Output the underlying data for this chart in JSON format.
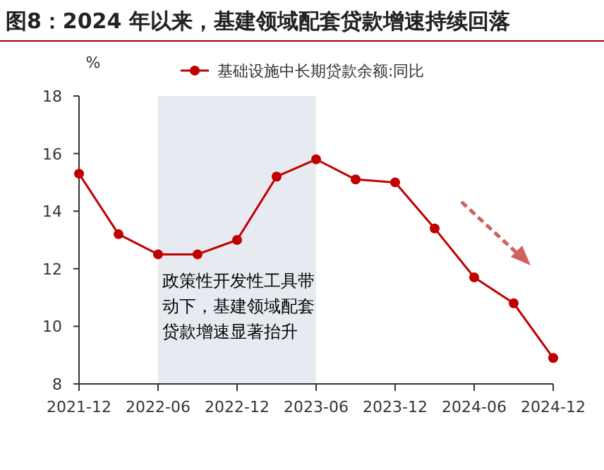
{
  "chart_data": {
    "type": "line",
    "title": "图8：2024 年以来，基建领域配套贷款增速持续回落",
    "ylabel": "%",
    "x": [
      "2021-12",
      "2022-03",
      "2022-06",
      "2022-09",
      "2022-12",
      "2023-03",
      "2023-06",
      "2023-09",
      "2023-12",
      "2024-03",
      "2024-06",
      "2024-09",
      "2024-12"
    ],
    "series": [
      {
        "name": "基础设施中长期贷款余额:同比",
        "color": "#c00000",
        "values": [
          15.3,
          13.2,
          12.5,
          12.5,
          13.0,
          15.2,
          15.8,
          15.1,
          15.0,
          13.4,
          11.7,
          10.8,
          8.9
        ]
      }
    ],
    "xlim": [
      "2021-12",
      "2024-12"
    ],
    "xticks": [
      "2021-12",
      "2022-06",
      "2022-12",
      "2023-06",
      "2023-12",
      "2024-06",
      "2024-12"
    ],
    "ylim": [
      8,
      18
    ],
    "yticks": [
      8,
      10,
      12,
      14,
      16,
      18
    ],
    "bands": [
      {
        "axis": "x",
        "from": "2022-06",
        "to": "2023-06",
        "label": "政策性开发性工具带动下，基建领域配套贷款增速显著抬升",
        "color": "#e7eaf0"
      }
    ],
    "grid": false,
    "legend": "top",
    "marker": "circle",
    "line_style": "solid"
  }
}
